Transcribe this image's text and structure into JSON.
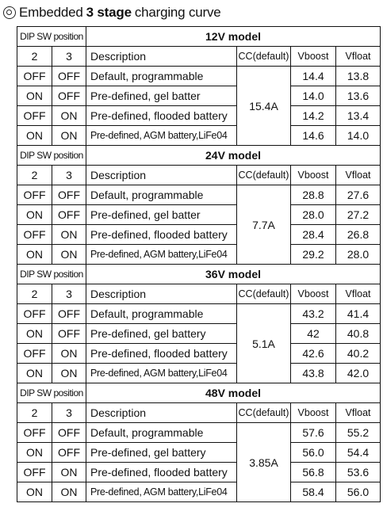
{
  "heading": {
    "prefix": "Embedded",
    "bold": "3 stage",
    "suffix": "charging curve"
  },
  "headers": {
    "dip": "DIP SW position",
    "sw2": "2",
    "sw3": "3",
    "description": "Description",
    "cc": "CC(default)",
    "vboost": "Vboost",
    "vfloat": "Vfloat"
  },
  "models": [
    {
      "title": "12V model",
      "cc": "15.4A",
      "rows": [
        {
          "sw2": "OFF",
          "sw3": "OFF",
          "desc": "Default, programmable",
          "vboost": "14.4",
          "vfloat": "13.8"
        },
        {
          "sw2": "ON",
          "sw3": "OFF",
          "desc": "Pre-defined, gel batter",
          "vboost": "14.0",
          "vfloat": "13.6"
        },
        {
          "sw2": "OFF",
          "sw3": "ON",
          "desc": "Pre-defined, flooded battery",
          "vboost": "14.2",
          "vfloat": "13.4"
        },
        {
          "sw2": "ON",
          "sw3": "ON",
          "desc": "Pre-defined, AGM battery,LiFe04",
          "vboost": "14.6",
          "vfloat": "14.0"
        }
      ]
    },
    {
      "title": "24V model",
      "cc": "7.7A",
      "rows": [
        {
          "sw2": "OFF",
          "sw3": "OFF",
          "desc": "Default, programmable",
          "vboost": "28.8",
          "vfloat": "27.6"
        },
        {
          "sw2": "ON",
          "sw3": "OFF",
          "desc": "Pre-defined, gel batter",
          "vboost": "28.0",
          "vfloat": "27.2"
        },
        {
          "sw2": "OFF",
          "sw3": "ON",
          "desc": "Pre-defined, flooded battery",
          "vboost": "28.4",
          "vfloat": "26.8"
        },
        {
          "sw2": "ON",
          "sw3": "ON",
          "desc": "Pre-defined, AGM battery,LiFe04",
          "vboost": "29.2",
          "vfloat": "28.0"
        }
      ]
    },
    {
      "title": "36V model",
      "cc": "5.1A",
      "rows": [
        {
          "sw2": "OFF",
          "sw3": "OFF",
          "desc": "Default, programmable",
          "vboost": "43.2",
          "vfloat": "41.4"
        },
        {
          "sw2": "ON",
          "sw3": "OFF",
          "desc": "Pre-defined, gel battery",
          "vboost": "42",
          "vfloat": "40.8"
        },
        {
          "sw2": "OFF",
          "sw3": "ON",
          "desc": "Pre-defined, flooded battery",
          "vboost": "42.6",
          "vfloat": "40.2"
        },
        {
          "sw2": "ON",
          "sw3": "ON",
          "desc": "Pre-defined, AGM battery,LiFe04",
          "vboost": "43.8",
          "vfloat": "42.0"
        }
      ]
    },
    {
      "title": "48V model",
      "cc": "3.85A",
      "rows": [
        {
          "sw2": "OFF",
          "sw3": "OFF",
          "desc": "Default, programmable",
          "vboost": "57.6",
          "vfloat": "55.2"
        },
        {
          "sw2": "ON",
          "sw3": "OFF",
          "desc": "Pre-defined, gel battery",
          "vboost": "56.0",
          "vfloat": "54.4"
        },
        {
          "sw2": "OFF",
          "sw3": "ON",
          "desc": "Pre-defined, flooded battery",
          "vboost": "56.8",
          "vfloat": "53.6"
        },
        {
          "sw2": "ON",
          "sw3": "ON",
          "desc": "Pre-defined, AGM battery,LiFe04",
          "vboost": "58.4",
          "vfloat": "56.0"
        }
      ]
    }
  ]
}
